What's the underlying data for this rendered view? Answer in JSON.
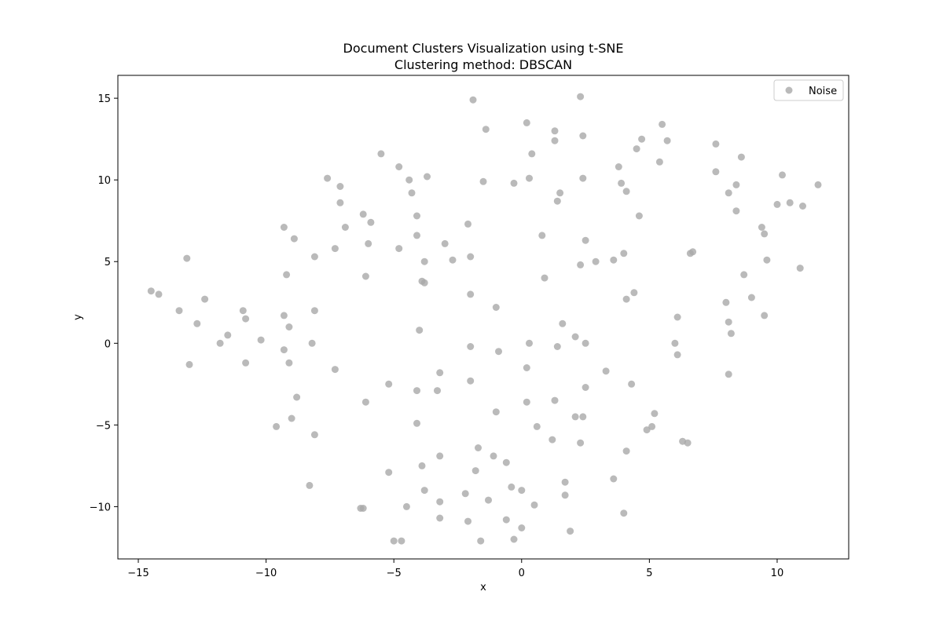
{
  "chart_data": {
    "type": "scatter",
    "title": "Document Clusters Visualization using t-SNE",
    "subtitle": "Clustering method: DBSCAN",
    "xlabel": "x",
    "ylabel": "y",
    "xlim": [
      -15.8,
      12.8
    ],
    "ylim": [
      -13.2,
      16.4
    ],
    "xticks": [
      -15,
      -10,
      -5,
      0,
      5,
      10
    ],
    "yticks": [
      -10,
      -5,
      0,
      5,
      10,
      15
    ],
    "xtick_labels": [
      "−15",
      "−10",
      "−5",
      "0",
      "5",
      "10"
    ],
    "ytick_labels": [
      "−10",
      "−5",
      "0",
      "5",
      "10",
      "15"
    ],
    "grid": false,
    "legend_position": "top-right",
    "series": [
      {
        "name": "Noise",
        "color": "#a9a9a9",
        "points": [
          [
            -14.5,
            3.2
          ],
          [
            -14.2,
            3.0
          ],
          [
            -13.1,
            5.2
          ],
          [
            -13.4,
            2.0
          ],
          [
            -12.4,
            2.7
          ],
          [
            -12.7,
            1.2
          ],
          [
            -13.0,
            -1.3
          ],
          [
            -11.8,
            0.0
          ],
          [
            -11.5,
            0.5
          ],
          [
            -10.9,
            2.0
          ],
          [
            -10.8,
            1.5
          ],
          [
            -10.8,
            -1.2
          ],
          [
            -10.2,
            0.2
          ],
          [
            -9.3,
            7.1
          ],
          [
            -8.9,
            6.4
          ],
          [
            -9.2,
            4.2
          ],
          [
            -9.3,
            1.7
          ],
          [
            -9.1,
            1.0
          ],
          [
            -9.3,
            -0.4
          ],
          [
            -9.1,
            -1.2
          ],
          [
            -8.8,
            -3.3
          ],
          [
            -9.0,
            -4.6
          ],
          [
            -9.6,
            -5.1
          ],
          [
            -8.1,
            5.3
          ],
          [
            -8.1,
            2.0
          ],
          [
            -8.2,
            -0.0
          ],
          [
            -8.1,
            -5.6
          ],
          [
            -8.3,
            -8.7
          ],
          [
            -7.6,
            10.1
          ],
          [
            -7.1,
            9.6
          ],
          [
            -7.1,
            8.6
          ],
          [
            -6.9,
            7.1
          ],
          [
            -7.3,
            5.8
          ],
          [
            -7.3,
            -1.6
          ],
          [
            -6.2,
            7.9
          ],
          [
            -5.9,
            7.4
          ],
          [
            -6.0,
            6.1
          ],
          [
            -6.1,
            4.1
          ],
          [
            -6.1,
            -3.6
          ],
          [
            -6.2,
            -10.1
          ],
          [
            -6.3,
            -10.1
          ],
          [
            -5.5,
            11.6
          ],
          [
            -4.8,
            10.8
          ],
          [
            -4.4,
            10.0
          ],
          [
            -4.3,
            9.2
          ],
          [
            -4.1,
            7.8
          ],
          [
            -4.1,
            6.6
          ],
          [
            -4.8,
            5.8
          ],
          [
            -3.8,
            5.0
          ],
          [
            -3.9,
            3.8
          ],
          [
            -3.8,
            3.7
          ],
          [
            -4.0,
            0.8
          ],
          [
            -4.1,
            -2.9
          ],
          [
            -4.1,
            -4.9
          ],
          [
            -5.2,
            -2.5
          ],
          [
            -5.2,
            -7.9
          ],
          [
            -4.5,
            -10.0
          ],
          [
            -5.0,
            -12.1
          ],
          [
            -4.7,
            -12.1
          ],
          [
            -3.7,
            10.2
          ],
          [
            -3.0,
            6.1
          ],
          [
            -2.7,
            5.1
          ],
          [
            -3.3,
            -2.9
          ],
          [
            -3.2,
            -1.8
          ],
          [
            -3.2,
            -6.9
          ],
          [
            -3.9,
            -7.5
          ],
          [
            -3.8,
            -9.0
          ],
          [
            -3.2,
            -9.7
          ],
          [
            -3.2,
            -10.7
          ],
          [
            -2.1,
            7.3
          ],
          [
            -2.0,
            5.3
          ],
          [
            -2.0,
            3.0
          ],
          [
            -2.0,
            -0.2
          ],
          [
            -2.0,
            -2.3
          ],
          [
            -1.9,
            14.9
          ],
          [
            -1.4,
            13.1
          ],
          [
            -1.5,
            9.9
          ],
          [
            -1.0,
            2.2
          ],
          [
            -0.9,
            -0.5
          ],
          [
            -1.0,
            -4.2
          ],
          [
            -1.7,
            -6.4
          ],
          [
            -1.8,
            -7.8
          ],
          [
            -1.1,
            -6.9
          ],
          [
            -0.6,
            -7.3
          ],
          [
            -2.2,
            -9.2
          ],
          [
            -1.3,
            -9.6
          ],
          [
            -2.1,
            -10.9
          ],
          [
            -0.4,
            -8.8
          ],
          [
            -0.6,
            -10.8
          ],
          [
            -1.6,
            -12.1
          ],
          [
            -0.3,
            -12.0
          ],
          [
            -0.3,
            9.8
          ],
          [
            0.2,
            13.5
          ],
          [
            0.4,
            11.6
          ],
          [
            0.3,
            10.1
          ],
          [
            0.8,
            6.6
          ],
          [
            0.9,
            4.0
          ],
          [
            0.3,
            0.0
          ],
          [
            0.2,
            -1.5
          ],
          [
            0.2,
            -3.6
          ],
          [
            0.6,
            -5.1
          ],
          [
            0.0,
            -9.0
          ],
          [
            0.5,
            -9.9
          ],
          [
            0.0,
            -11.3
          ],
          [
            1.3,
            13.0
          ],
          [
            1.3,
            12.4
          ],
          [
            1.5,
            9.2
          ],
          [
            1.4,
            8.7
          ],
          [
            1.6,
            1.2
          ],
          [
            1.4,
            -0.2
          ],
          [
            1.3,
            -3.5
          ],
          [
            1.2,
            -5.9
          ],
          [
            1.7,
            -8.5
          ],
          [
            1.7,
            -9.3
          ],
          [
            1.9,
            -11.5
          ],
          [
            2.3,
            15.1
          ],
          [
            2.4,
            12.7
          ],
          [
            2.4,
            10.1
          ],
          [
            2.5,
            6.3
          ],
          [
            2.3,
            4.8
          ],
          [
            2.9,
            5.0
          ],
          [
            2.1,
            0.4
          ],
          [
            2.5,
            0.0
          ],
          [
            2.5,
            -2.7
          ],
          [
            2.1,
            -4.5
          ],
          [
            2.4,
            -4.5
          ],
          [
            2.3,
            -6.1
          ],
          [
            3.3,
            -1.7
          ],
          [
            3.8,
            10.8
          ],
          [
            3.9,
            9.8
          ],
          [
            4.1,
            9.3
          ],
          [
            4.0,
            5.5
          ],
          [
            3.6,
            5.1
          ],
          [
            4.1,
            2.7
          ],
          [
            4.4,
            3.1
          ],
          [
            4.3,
            -2.5
          ],
          [
            4.1,
            -6.6
          ],
          [
            3.6,
            -8.3
          ],
          [
            4.0,
            -10.4
          ],
          [
            4.5,
            11.9
          ],
          [
            4.7,
            12.5
          ],
          [
            4.6,
            7.8
          ],
          [
            5.5,
            13.4
          ],
          [
            5.7,
            12.4
          ],
          [
            5.4,
            11.1
          ],
          [
            5.2,
            -4.3
          ],
          [
            4.9,
            -5.3
          ],
          [
            5.1,
            -5.1
          ],
          [
            6.6,
            5.5
          ],
          [
            6.7,
            5.6
          ],
          [
            6.1,
            1.6
          ],
          [
            6.0,
            0.0
          ],
          [
            6.1,
            -0.7
          ],
          [
            6.3,
            -6.0
          ],
          [
            6.5,
            -6.1
          ],
          [
            7.6,
            12.2
          ],
          [
            7.6,
            10.5
          ],
          [
            8.1,
            9.2
          ],
          [
            8.4,
            9.7
          ],
          [
            8.6,
            11.4
          ],
          [
            8.4,
            8.1
          ],
          [
            8.7,
            4.2
          ],
          [
            8.0,
            2.5
          ],
          [
            8.1,
            1.3
          ],
          [
            8.2,
            0.6
          ],
          [
            8.1,
            -1.9
          ],
          [
            9.0,
            2.8
          ],
          [
            9.4,
            7.1
          ],
          [
            9.5,
            6.7
          ],
          [
            9.6,
            5.1
          ],
          [
            9.5,
            1.7
          ],
          [
            10.0,
            8.5
          ],
          [
            10.2,
            10.3
          ],
          [
            10.5,
            8.6
          ],
          [
            11.0,
            8.4
          ],
          [
            10.9,
            4.6
          ],
          [
            11.6,
            9.7
          ]
        ]
      }
    ]
  }
}
